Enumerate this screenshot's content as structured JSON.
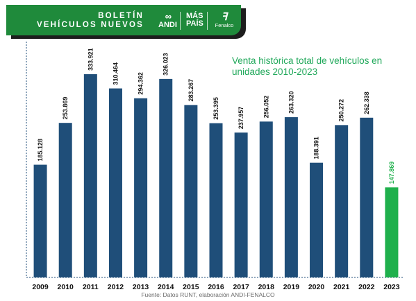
{
  "banner": {
    "title_line1": "BOLETÍN",
    "title_line2": "VEHÍCULOS NUEVOS",
    "logos": [
      {
        "icon": "andi-logo",
        "text": "ANDI"
      },
      {
        "icon": "mas-pais-logo",
        "text_line1": "MÁS",
        "text_line2": "PAÍS"
      },
      {
        "icon": "fenalco-logo",
        "text": "Fenalco"
      }
    ]
  },
  "chart_data": {
    "type": "bar",
    "title": "Venta histórica total de   vehículos en unidades 2010-2023",
    "categories": [
      "2009",
      "2010",
      "2011",
      "2012",
      "2013",
      "2014",
      "2015",
      "2016",
      "2017",
      "2018",
      "2019",
      "2020",
      "2021",
      "2022",
      "2023"
    ],
    "values": [
      185128,
      253869,
      333921,
      310464,
      294362,
      326023,
      283267,
      253395,
      237957,
      256052,
      263320,
      188391,
      250272,
      262338,
      147869
    ],
    "labels": [
      "185.128",
      "253.869",
      "333.921",
      "310.464",
      "294.362",
      "326.023",
      "283.267",
      "253.395",
      "237.957",
      "256.052",
      "263.320",
      "188.391",
      "250.272",
      "262.338",
      "147.869"
    ],
    "ylim": [
      0,
      376000
    ],
    "grid": false,
    "colors": {
      "bar": "#1f4e79",
      "highlight_bar": "#1fb04c",
      "highlight_label": "#1fb04c",
      "axis": "#1f4e79"
    },
    "highlight_category": "2023",
    "source": "Fuente: Datos RUNT, elaboración ANDI-FENALCO"
  }
}
